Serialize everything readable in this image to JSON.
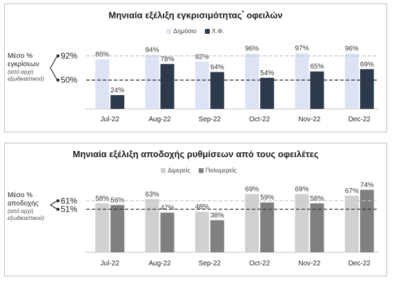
{
  "chart_data": [
    {
      "type": "bar",
      "title": "Μηνιαία εξέλιξη εγκρισιμότητας",
      "title_superscript": "*",
      "title_suffix": "οφειλών",
      "categories": [
        "Jul-22",
        "Aug-22",
        "Sep-22",
        "Oct-22",
        "Nov-22",
        "Dec-22"
      ],
      "series": [
        {
          "name": "Δημόσιο",
          "values": [
            86,
            94,
            82,
            96,
            97,
            96
          ],
          "labels": [
            "86%",
            "94%",
            "82%",
            "96%",
            "97%",
            "96%"
          ],
          "color": "#dbe3f4"
        },
        {
          "name": "Χ.Φ.",
          "values": [
            24,
            78,
            64,
            54,
            65,
            69
          ],
          "labels": [
            "24%",
            "78%",
            "64%",
            "54%",
            "65%",
            "69%"
          ],
          "color": "#2d3a4e"
        }
      ],
      "averages": [
        {
          "value": 92,
          "label": "92%",
          "style": "dashed-light"
        },
        {
          "value": 50,
          "label": "50%",
          "style": "dashed-dark"
        }
      ],
      "side_label": {
        "main": "Μέσο % εγκρίσεων",
        "sub": "(από αρχή εξωδικαστικού)"
      },
      "ylim": [
        0,
        110
      ]
    },
    {
      "type": "bar",
      "title": "Μηνιαία εξέλιξη αποδοχής ρυθμίσεων από τους οφειλέτες",
      "categories": [
        "Jul-22",
        "Aug-22",
        "Sep-22",
        "Oct-22",
        "Nov-22",
        "Dec-22"
      ],
      "series": [
        {
          "name": "Διμερείς",
          "values": [
            58,
            63,
            48,
            69,
            69,
            67
          ],
          "labels": [
            "58%",
            "63%",
            "48%",
            "69%",
            "69%",
            "67%"
          ],
          "color": "#d0d0d0"
        },
        {
          "name": "Πολυμερείς",
          "values": [
            56,
            47,
            38,
            59,
            58,
            74
          ],
          "labels": [
            "56%",
            "47%",
            "38%",
            "59%",
            "58%",
            "74%"
          ],
          "color": "#808080"
        }
      ],
      "averages": [
        {
          "value": 61,
          "label": "61%",
          "style": "dashed-light"
        },
        {
          "value": 51,
          "label": "51%",
          "style": "dashed-dark"
        }
      ],
      "side_label": {
        "main": "Μέσο % αποδοχής",
        "sub": "(από αρχή εξωδικαστικού)"
      },
      "ylim": [
        0,
        80
      ]
    }
  ]
}
